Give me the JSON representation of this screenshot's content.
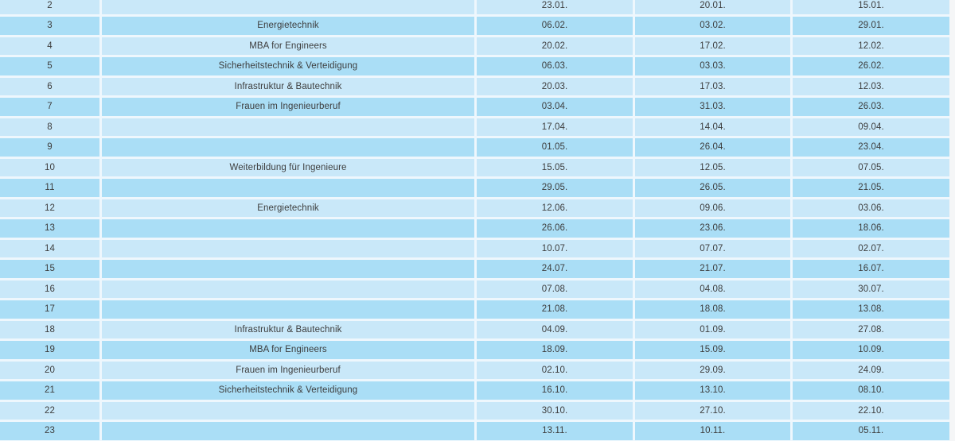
{
  "colors": {
    "row_light": "#c9e8f9",
    "row_dark": "#aadef6",
    "cell_gap": "#eef7fd",
    "page_background": "#f5f6f7",
    "text": "#3d3d3d"
  },
  "table": {
    "rows": [
      {
        "num": "2",
        "topic": "",
        "d1": "23.01.",
        "d2": "20.01.",
        "d3": "15.01."
      },
      {
        "num": "3",
        "topic": "Energietechnik",
        "d1": "06.02.",
        "d2": "03.02.",
        "d3": "29.01."
      },
      {
        "num": "4",
        "topic": "MBA for Engineers",
        "d1": "20.02.",
        "d2": "17.02.",
        "d3": "12.02."
      },
      {
        "num": "5",
        "topic": "Sicherheitstechnik & Verteidigung",
        "d1": "06.03.",
        "d2": "03.03.",
        "d3": "26.02."
      },
      {
        "num": "6",
        "topic": "Infrastruktur & Bautechnik",
        "d1": "20.03.",
        "d2": "17.03.",
        "d3": "12.03."
      },
      {
        "num": "7",
        "topic": "Frauen im Ingenieurberuf",
        "d1": "03.04.",
        "d2": "31.03.",
        "d3": "26.03."
      },
      {
        "num": "8",
        "topic": "",
        "d1": "17.04.",
        "d2": "14.04.",
        "d3": "09.04."
      },
      {
        "num": "9",
        "topic": "",
        "d1": "01.05.",
        "d2": "26.04.",
        "d3": "23.04."
      },
      {
        "num": "10",
        "topic": "Weiterbildung für Ingenieure",
        "d1": "15.05.",
        "d2": "12.05.",
        "d3": "07.05."
      },
      {
        "num": "11",
        "topic": "",
        "d1": "29.05.",
        "d2": "26.05.",
        "d3": "21.05."
      },
      {
        "num": "12",
        "topic": "Energietechnik",
        "d1": "12.06.",
        "d2": "09.06.",
        "d3": "03.06."
      },
      {
        "num": "13",
        "topic": "",
        "d1": "26.06.",
        "d2": "23.06.",
        "d3": "18.06."
      },
      {
        "num": "14",
        "topic": "",
        "d1": "10.07.",
        "d2": "07.07.",
        "d3": "02.07."
      },
      {
        "num": "15",
        "topic": "",
        "d1": "24.07.",
        "d2": "21.07.",
        "d3": "16.07."
      },
      {
        "num": "16",
        "topic": "",
        "d1": "07.08.",
        "d2": "04.08.",
        "d3": "30.07."
      },
      {
        "num": "17",
        "topic": "",
        "d1": "21.08.",
        "d2": "18.08.",
        "d3": "13.08."
      },
      {
        "num": "18",
        "topic": "Infrastruktur & Bautechnik",
        "d1": "04.09.",
        "d2": "01.09.",
        "d3": "27.08."
      },
      {
        "num": "19",
        "topic": "MBA for Engineers",
        "d1": "18.09.",
        "d2": "15.09.",
        "d3": "10.09."
      },
      {
        "num": "20",
        "topic": "Frauen im Ingenieurberuf",
        "d1": "02.10.",
        "d2": "29.09.",
        "d3": "24.09."
      },
      {
        "num": "21",
        "topic": "Sicherheitstechnik & Verteidigung",
        "d1": "16.10.",
        "d2": "13.10.",
        "d3": "08.10."
      },
      {
        "num": "22",
        "topic": "",
        "d1": "30.10.",
        "d2": "27.10.",
        "d3": "22.10."
      },
      {
        "num": "23",
        "topic": "",
        "d1": "13.11.",
        "d2": "10.11.",
        "d3": "05.11."
      }
    ]
  }
}
